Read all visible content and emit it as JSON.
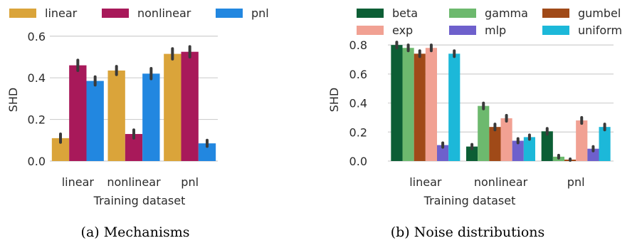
{
  "chart_data": [
    {
      "type": "bar",
      "caption": "(a) Mechanisms",
      "xlabel": "Training dataset",
      "ylabel": "SHD",
      "ylim": [
        0,
        0.63
      ],
      "yticks": [
        "0.0",
        "0.2",
        "0.4",
        "0.6"
      ],
      "grid": true,
      "legend_position": "top",
      "categories": [
        "linear",
        "nonlinear",
        "pnl"
      ],
      "series": [
        {
          "name": "linear",
          "color": "#DAA43A",
          "values": [
            0.11,
            0.435,
            0.515
          ],
          "ci": [
            0.02,
            0.02,
            0.025
          ]
        },
        {
          "name": "nonlinear",
          "color": "#A8195A",
          "values": [
            0.46,
            0.13,
            0.525
          ],
          "ci": [
            0.025,
            0.02,
            0.025
          ]
        },
        {
          "name": "pnl",
          "color": "#2287E0",
          "values": [
            0.385,
            0.42,
            0.085
          ],
          "ci": [
            0.02,
            0.025,
            0.015
          ]
        }
      ]
    },
    {
      "type": "bar",
      "caption": "(b) Noise distributions",
      "xlabel": "Training dataset",
      "ylabel": "SHD",
      "ylim": [
        0,
        0.84
      ],
      "yticks": [
        "0.0",
        "0.2",
        "0.4",
        "0.6",
        "0.8"
      ],
      "grid": true,
      "legend_position": "top",
      "categories": [
        "linear",
        "nonlinear",
        "pnl"
      ],
      "series": [
        {
          "name": "beta",
          "color": "#0C5E35",
          "values": [
            0.8,
            0.1,
            0.205
          ],
          "ci": [
            0.02,
            0.015,
            0.02
          ]
        },
        {
          "name": "gamma",
          "color": "#6DB96E",
          "values": [
            0.78,
            0.38,
            0.03
          ],
          "ci": [
            0.02,
            0.02,
            0.01
          ]
        },
        {
          "name": "gumbel",
          "color": "#A04A18",
          "values": [
            0.74,
            0.235,
            0.01
          ],
          "ci": [
            0.02,
            0.02,
            0.005
          ]
        },
        {
          "name": "exp",
          "color": "#F1A193",
          "values": [
            0.78,
            0.295,
            0.28
          ],
          "ci": [
            0.02,
            0.02,
            0.02
          ]
        },
        {
          "name": "mlp",
          "color": "#6E60CC",
          "values": [
            0.11,
            0.14,
            0.085
          ],
          "ci": [
            0.015,
            0.015,
            0.015
          ]
        },
        {
          "name": "uniform",
          "color": "#1CB8D9",
          "values": [
            0.74,
            0.165,
            0.235
          ],
          "ci": [
            0.02,
            0.015,
            0.02
          ]
        }
      ]
    }
  ]
}
